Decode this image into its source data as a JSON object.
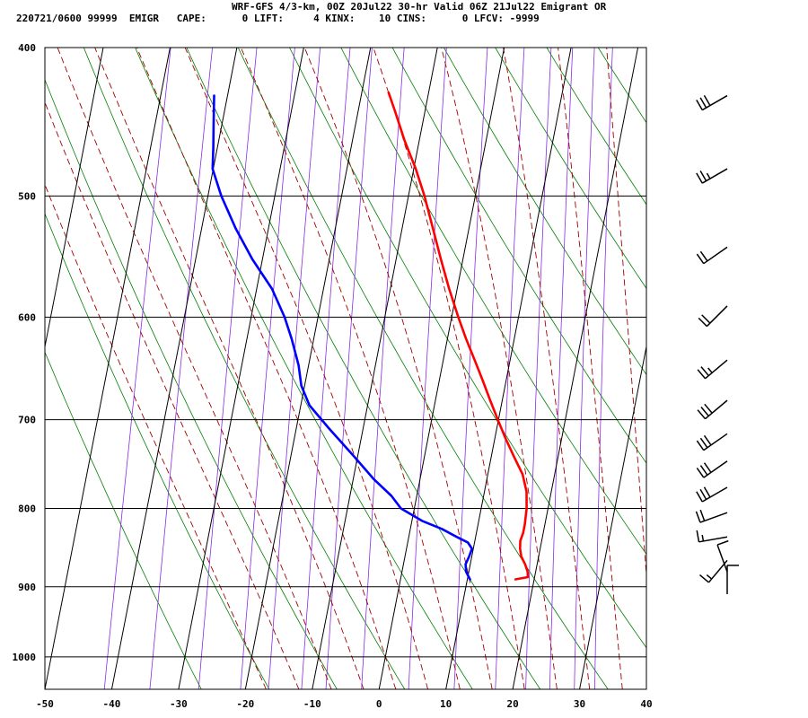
{
  "header": {
    "title": "WRF-GFS 4/3-km, 00Z 20Jul22 30-hr Valid 06Z 21Jul22 Emigrant OR",
    "info": "220721/0600 99999  EMIGR   CAPE:      0 LIFT:     4 KINX:    10 CINS:      0 LFCV: -9999"
  },
  "chart_data": {
    "type": "line",
    "subtype": "skew-t log-p",
    "title": "WRF-GFS 4/3-km, 00Z 20Jul22 30-hr Valid 06Z 21Jul22 Emigrant OR",
    "xlabel": "",
    "ylabel": "",
    "x_ticks": [
      -50,
      -40,
      -30,
      -20,
      -10,
      0,
      10,
      20,
      30,
      40
    ],
    "y_ticks": [
      400,
      500,
      600,
      700,
      800,
      900,
      1000
    ],
    "xlim": [
      -50,
      40
    ],
    "ylim": [
      1050,
      400
    ],
    "y_scale": "log",
    "grid": true,
    "series": [
      {
        "color": "#ff0000",
        "points": [
          [
            890,
            17.2
          ],
          [
            887,
            19.0
          ],
          [
            880,
            18.8
          ],
          [
            870,
            18.2
          ],
          [
            860,
            17.4
          ],
          [
            850,
            17.0
          ],
          [
            840,
            16.8
          ],
          [
            830,
            17.0
          ],
          [
            820,
            17.0
          ],
          [
            800,
            16.8
          ],
          [
            780,
            16.3
          ],
          [
            760,
            15.2
          ],
          [
            740,
            13.4
          ],
          [
            720,
            11.6
          ],
          [
            700,
            9.9
          ],
          [
            680,
            8.2
          ],
          [
            660,
            6.5
          ],
          [
            640,
            4.7
          ],
          [
            620,
            2.8
          ],
          [
            600,
            1.0
          ],
          [
            575,
            -1.2
          ],
          [
            550,
            -3.3
          ],
          [
            525,
            -5.4
          ],
          [
            500,
            -7.6
          ],
          [
            480,
            -9.7
          ],
          [
            460,
            -12.2
          ],
          [
            440,
            -14.5
          ],
          [
            428,
            -16.0
          ]
        ]
      },
      {
        "color": "#0000ff",
        "points": [
          [
            890,
            10.4
          ],
          [
            880,
            9.6
          ],
          [
            870,
            9.3
          ],
          [
            860,
            9.6
          ],
          [
            850,
            9.8
          ],
          [
            842,
            9.0
          ],
          [
            835,
            7.2
          ],
          [
            825,
            4.7
          ],
          [
            815,
            1.5
          ],
          [
            800,
            -2.0
          ],
          [
            785,
            -3.8
          ],
          [
            765,
            -7.0
          ],
          [
            740,
            -10.5
          ],
          [
            710,
            -15.0
          ],
          [
            685,
            -18.7
          ],
          [
            665,
            -20.5
          ],
          [
            645,
            -21.5
          ],
          [
            620,
            -23.3
          ],
          [
            600,
            -25.0
          ],
          [
            575,
            -27.7
          ],
          [
            550,
            -31.5
          ],
          [
            525,
            -34.9
          ],
          [
            500,
            -38.0
          ],
          [
            480,
            -40.1
          ],
          [
            465,
            -40.6
          ],
          [
            450,
            -41.2
          ],
          [
            430,
            -42.0
          ]
        ]
      }
    ],
    "wind_barbs": [
      {
        "p": 430,
        "dir": 240,
        "spd": 30
      },
      {
        "p": 480,
        "dir": 240,
        "spd": 25
      },
      {
        "p": 540,
        "dir": 235,
        "spd": 20
      },
      {
        "p": 590,
        "dir": 225,
        "spd": 20
      },
      {
        "p": 640,
        "dir": 230,
        "spd": 25
      },
      {
        "p": 680,
        "dir": 230,
        "spd": 30
      },
      {
        "p": 715,
        "dir": 235,
        "spd": 30
      },
      {
        "p": 745,
        "dir": 235,
        "spd": 30
      },
      {
        "p": 775,
        "dir": 240,
        "spd": 30
      },
      {
        "p": 805,
        "dir": 250,
        "spd": 20
      },
      {
        "p": 835,
        "dir": 260,
        "spd": 15
      },
      {
        "p": 865,
        "dir": 220,
        "spd": 15
      },
      {
        "p": 880,
        "dir": 340,
        "spd": 10
      },
      {
        "p": 910,
        "dir": 360,
        "spd": 10
      }
    ]
  }
}
